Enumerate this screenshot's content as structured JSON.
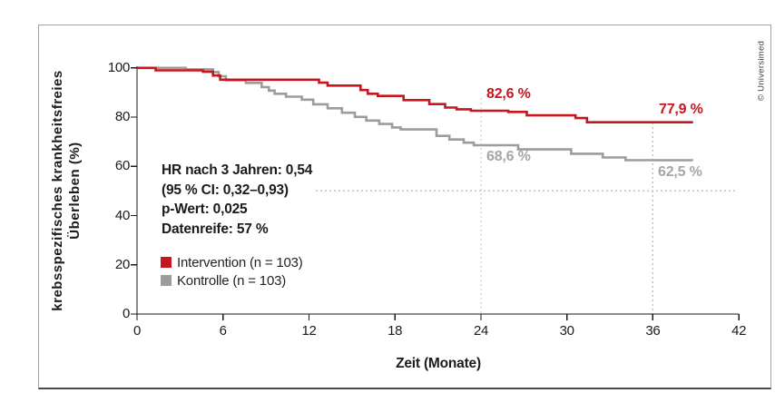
{
  "figure": {
    "copyright": "© Universimed",
    "stats_box": {
      "line1": "HR nach 3 Jahren: 0,54",
      "line2": "(95 % CI: 0,32–0,93)",
      "line3": "p-Wert: 0,025",
      "line4": "Datenreife: 57 %"
    }
  },
  "chart_data": {
    "type": "line",
    "subtype": "kaplan-meier-step",
    "title": "",
    "xlabel": "Zeit (Monate)",
    "ylabel": "krebsspezifisches krankheitsfreies Überleben (%)",
    "ylabel_line1": "krebsspezifisches krankheitsfreies",
    "ylabel_line2": "Überleben (%)",
    "xlim": [
      0,
      42
    ],
    "ylim": [
      0,
      100
    ],
    "x_ticks": [
      0,
      6,
      12,
      18,
      24,
      30,
      36,
      42
    ],
    "y_ticks": [
      0,
      20,
      40,
      60,
      80,
      100
    ],
    "grid": false,
    "legend_position": "inside-left",
    "series": [
      {
        "id": "intervention",
        "name": "Intervention (n = 103)",
        "color": "#c6171e",
        "survival_24_months_pct": 82.6,
        "survival_36_months_pct": 77.9,
        "step_points": [
          [
            0,
            100
          ],
          [
            1.3,
            99.0
          ],
          [
            4.6,
            98.4
          ],
          [
            5.3,
            96.9
          ],
          [
            5.8,
            95.2
          ],
          [
            12.7,
            94.0
          ],
          [
            13.3,
            92.8
          ],
          [
            15.6,
            91.0
          ],
          [
            16.1,
            89.5
          ],
          [
            16.8,
            88.6
          ],
          [
            18.6,
            86.9
          ],
          [
            20.4,
            85.3
          ],
          [
            21.5,
            83.9
          ],
          [
            22.3,
            83.2
          ],
          [
            23.3,
            82.6
          ],
          [
            25.9,
            82.1
          ],
          [
            27.2,
            80.7
          ],
          [
            30.6,
            79.6
          ],
          [
            31.4,
            77.9
          ],
          [
            38.8,
            77.9
          ]
        ]
      },
      {
        "id": "kontrolle",
        "name": "Kontrolle (n = 103)",
        "color": "#9c9c9c",
        "survival_24_months_pct": 68.6,
        "survival_36_months_pct": 62.5,
        "step_points": [
          [
            0,
            100
          ],
          [
            3.4,
            99.4
          ],
          [
            5.3,
            98.3
          ],
          [
            5.7,
            96.6
          ],
          [
            6.2,
            95.0
          ],
          [
            7.6,
            93.9
          ],
          [
            8.7,
            92.2
          ],
          [
            9.2,
            90.8
          ],
          [
            9.6,
            89.5
          ],
          [
            10.4,
            88.3
          ],
          [
            11.5,
            87.1
          ],
          [
            12.3,
            85.2
          ],
          [
            13.3,
            83.6
          ],
          [
            14.3,
            81.8
          ],
          [
            15.2,
            80.1
          ],
          [
            16.0,
            78.6
          ],
          [
            16.9,
            77.2
          ],
          [
            17.8,
            75.8
          ],
          [
            18.4,
            75.0
          ],
          [
            20.9,
            72.4
          ],
          [
            21.8,
            70.9
          ],
          [
            22.8,
            69.6
          ],
          [
            23.5,
            68.6
          ],
          [
            26.6,
            66.9
          ],
          [
            30.3,
            65.1
          ],
          [
            32.5,
            63.6
          ],
          [
            34.1,
            62.5
          ],
          [
            38.8,
            62.5
          ]
        ]
      }
    ],
    "reference_lines": {
      "vertical_months": [
        24,
        36
      ],
      "horizontal_pct": 50
    },
    "annotations": [
      {
        "text": "82,6 %",
        "series": "intervention",
        "month": 24,
        "value_pct": 82.6
      },
      {
        "text": "77,9 %",
        "series": "intervention",
        "month": 36,
        "value_pct": 77.9
      },
      {
        "text": "68,6 %",
        "series": "kontrolle",
        "month": 24,
        "value_pct": 68.6
      },
      {
        "text": "62,5 %",
        "series": "kontrolle",
        "month": 36,
        "value_pct": 62.5
      }
    ]
  }
}
